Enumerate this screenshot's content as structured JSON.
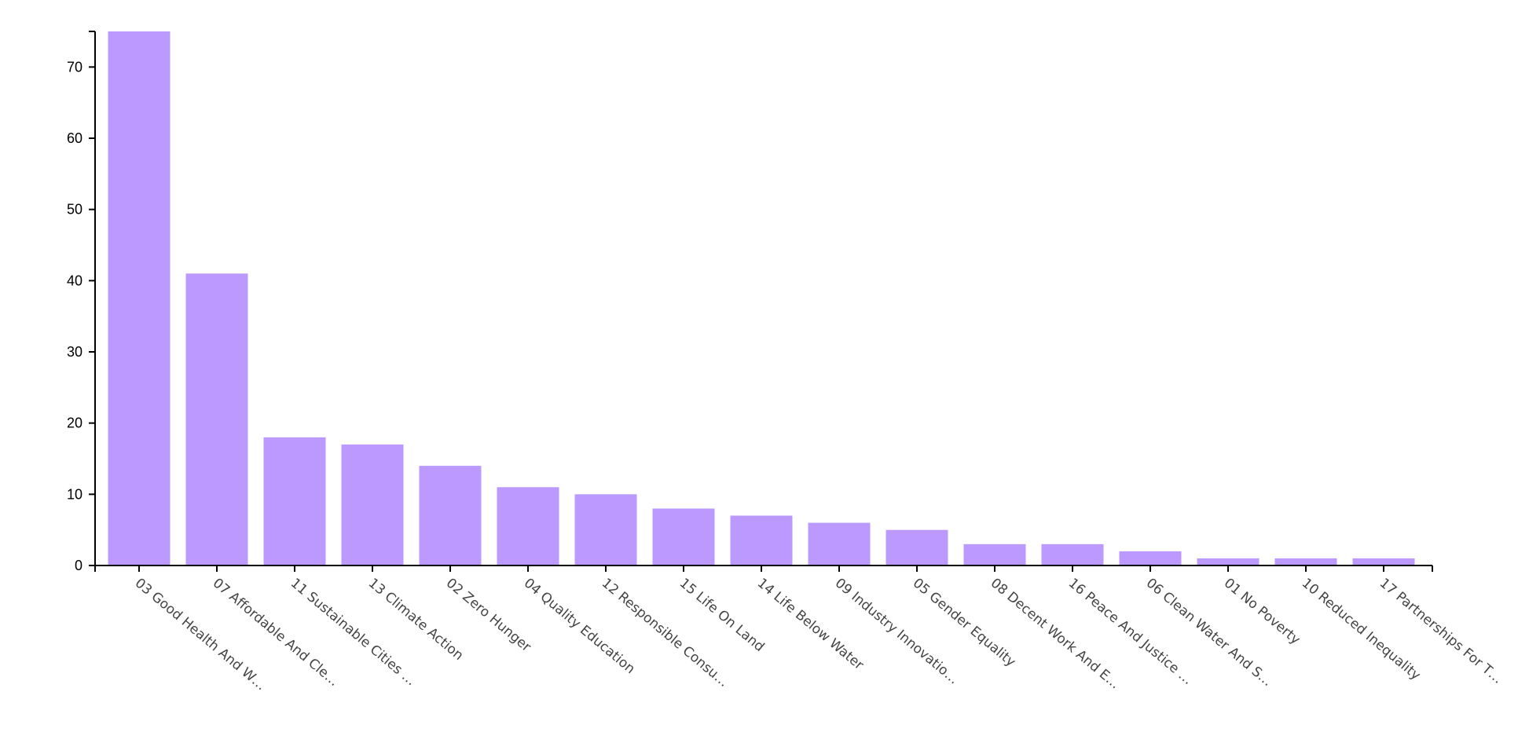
{
  "chart_data": {
    "type": "bar",
    "categories": [
      "03 Good Health And W…",
      "07 Affordable And Cle…",
      "11 Sustainable Cities …",
      "13 Climate Action",
      "02 Zero Hunger",
      "04 Quality Education",
      "12 Responsible Consu…",
      "15 Life On Land",
      "14 Life Below Water",
      "09 Industry Innovatio…",
      "05 Gender Equality",
      "08 Decent Work And E…",
      "16 Peace And Justice …",
      "06 Clean Water And S…",
      "01 No Poverty",
      "10 Reduced Inequality",
      "17 Partnerships For T…"
    ],
    "values": [
      75,
      41,
      18,
      17,
      14,
      11,
      10,
      8,
      7,
      6,
      5,
      3,
      3,
      2,
      1,
      1,
      1
    ],
    "yticks": [
      "0",
      "10",
      "20",
      "30",
      "40",
      "50",
      "60",
      "70"
    ],
    "ylim": [
      0,
      75
    ],
    "title": "",
    "xlabel": "",
    "ylabel": "",
    "grid": false,
    "bar_color": "#bb99ff"
  }
}
